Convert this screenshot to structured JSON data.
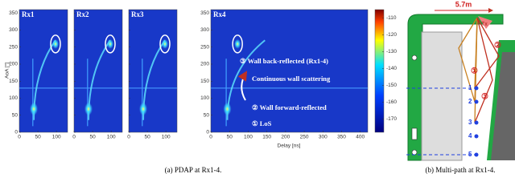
{
  "figure_a": {
    "panels": [
      {
        "label": "Rx1",
        "xticks": [
          0,
          50,
          100
        ]
      },
      {
        "label": "Rx2",
        "xticks": [
          0,
          50,
          100
        ]
      },
      {
        "label": "Rx3",
        "xticks": [
          0,
          50,
          100
        ]
      },
      {
        "label": "Rx4",
        "xticks": [
          0,
          50,
          100,
          150,
          200,
          250,
          300,
          350,
          400
        ]
      }
    ],
    "ylabel": "AoA [°]",
    "ylim": [
      0,
      360
    ],
    "yticks": [
      0,
      50,
      100,
      150,
      200,
      250,
      300,
      350
    ],
    "small_xlim": [
      0,
      130
    ],
    "rx4_xlim": [
      0,
      420
    ],
    "xlabel": "Delay [ns]",
    "colorbar_lim": [
      -105,
      -178
    ],
    "colorbar_ticks": [
      -110,
      -120,
      -130,
      -140,
      -150,
      -160,
      -170
    ],
    "annotations": [
      "③ Wall back-reflected (Rx1-4)",
      "Continuous wall scattering",
      "② Wall forward-reflected",
      "① LoS"
    ],
    "caption": "(a) PDAP at Rx1-4."
  },
  "figure_b": {
    "distance": "5.7m",
    "tx": "Tx",
    "points": [
      "1",
      "2",
      "3",
      "4",
      "5"
    ],
    "paths": [
      "①",
      "②",
      "③"
    ],
    "caption": "(b) Multi-path at Rx1-4."
  }
}
